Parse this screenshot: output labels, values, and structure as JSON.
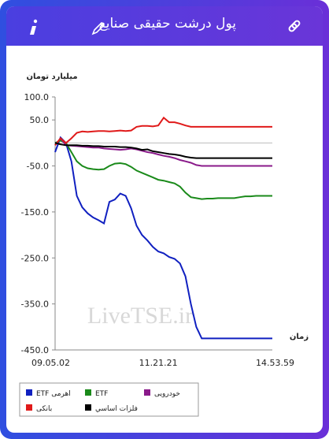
{
  "header": {
    "title": "پول درشت حقیقی صنایع"
  },
  "chart_data": {
    "type": "line",
    "y_label": "میلیارد تومان",
    "x_label": "زمان",
    "watermark": "LiveTSE.ir",
    "categories": [
      "09.05.02",
      null,
      null,
      null,
      null,
      null,
      null,
      null,
      null,
      null,
      null,
      null,
      null,
      null,
      null,
      null,
      null,
      null,
      null,
      "11.21.21",
      null,
      null,
      null,
      null,
      null,
      null,
      null,
      null,
      null,
      null,
      null,
      null,
      null,
      null,
      null,
      null,
      null,
      null,
      null,
      null,
      "14.53.59"
    ],
    "ylim": [
      -450,
      100
    ],
    "yticks": [
      {
        "value": 100,
        "label": "100.0"
      },
      {
        "value": 50,
        "label": "50.0"
      },
      {
        "value": -50,
        "label": "-50.0"
      },
      {
        "value": -150,
        "label": "-150.0"
      },
      {
        "value": -250,
        "label": "-250.0"
      },
      {
        "value": -350,
        "label": "-350.0"
      },
      {
        "value": -450,
        "label": "-450.0"
      }
    ],
    "series": [
      {
        "name": "ETF اهرمی",
        "color": "#1020c0",
        "values": [
          -20,
          12,
          0,
          -40,
          -115,
          -140,
          -153,
          -162,
          -168,
          -175,
          -128,
          -123,
          -110,
          -115,
          -142,
          -180,
          -200,
          -212,
          -226,
          -236,
          -240,
          -248,
          -252,
          -262,
          -290,
          -350,
          -400,
          -425,
          -425,
          -425,
          -425,
          -425,
          -425,
          -425,
          -425,
          -425,
          -425,
          -425,
          -425,
          -425,
          -425
        ]
      },
      {
        "name": "ETF",
        "color": "#1a8a1a",
        "values": [
          0,
          5,
          0,
          -20,
          -40,
          -50,
          -55,
          -57,
          -58,
          -57,
          -50,
          -45,
          -44,
          -46,
          -52,
          -60,
          -65,
          -70,
          -75,
          -80,
          -82,
          -85,
          -88,
          -95,
          -108,
          -118,
          -120,
          -122,
          -121,
          -121,
          -120,
          -120,
          -120,
          -120,
          -118,
          -116,
          -116,
          -115,
          -115,
          -115,
          -115
        ]
      },
      {
        "name": "خودرویی",
        "color": "#8a1a8a",
        "values": [
          -5,
          10,
          -5,
          -6,
          -7,
          -8,
          -9,
          -10,
          -10,
          -12,
          -13,
          -14,
          -15,
          -14,
          -12,
          -14,
          -17,
          -20,
          -22,
          -25,
          -28,
          -30,
          -33,
          -37,
          -40,
          -43,
          -48,
          -50,
          -50,
          -50,
          -50,
          -50,
          -50,
          -50,
          -50,
          -50,
          -50,
          -50,
          -50,
          -50,
          -50
        ]
      },
      {
        "name": "بانکی",
        "color": "#e01a1a",
        "values": [
          -5,
          10,
          0,
          10,
          22,
          25,
          24,
          25,
          26,
          26,
          25,
          26,
          27,
          26,
          27,
          35,
          37,
          37,
          36,
          38,
          55,
          45,
          45,
          42,
          38,
          35,
          35,
          35,
          35,
          35,
          35,
          35,
          35,
          35,
          35,
          35,
          35,
          35,
          35,
          35,
          35
        ]
      },
      {
        "name": "فلزات اساسي",
        "color": "#000000",
        "values": [
          0,
          -3,
          -5,
          -5,
          -5,
          -6,
          -6,
          -7,
          -7,
          -8,
          -8,
          -8,
          -9,
          -9,
          -10,
          -12,
          -15,
          -14,
          -18,
          -20,
          -22,
          -24,
          -25,
          -27,
          -30,
          -32,
          -33,
          -33,
          -33,
          -33,
          -33,
          -33,
          -33,
          -33,
          -33,
          -33,
          -33,
          -33,
          -33,
          -33,
          -33
        ]
      }
    ]
  }
}
